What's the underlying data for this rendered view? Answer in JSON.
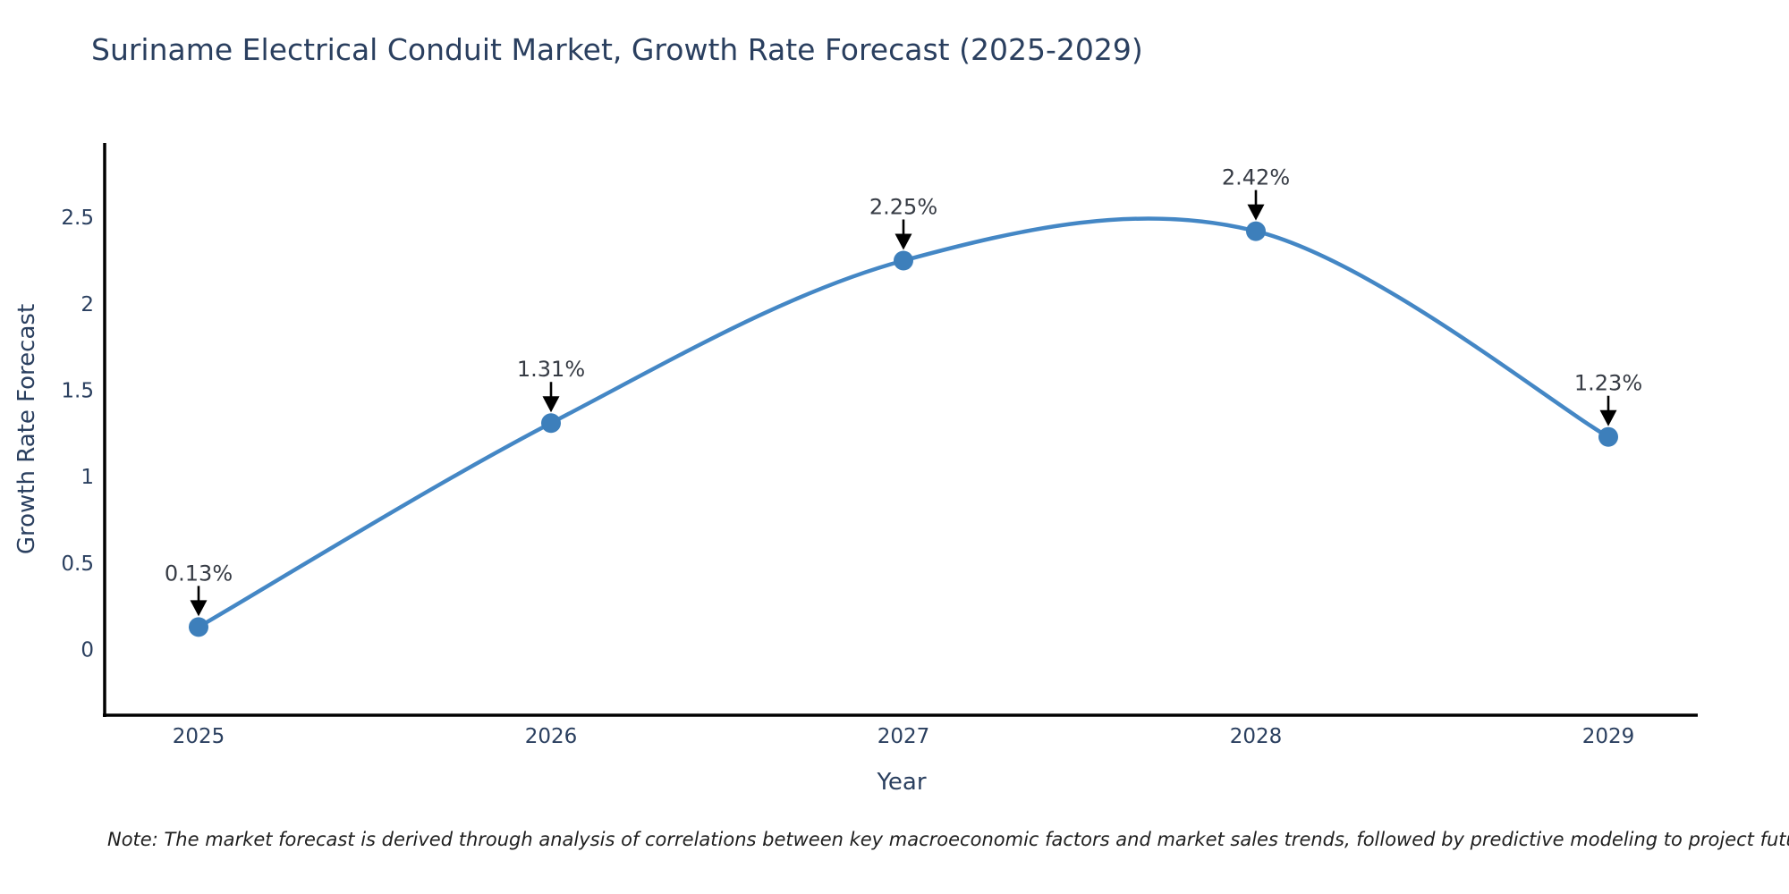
{
  "chart": {
    "title": "Suriname Electrical Conduit Market, Growth Rate Forecast (2025-2029)",
    "xlabel": "Year",
    "ylabel": "Growth Rate Forecast",
    "note": "Note: The market forecast is derived through analysis of correlations between key macroeconomic factors and market sales trends, followed by predictive modeling to project future sales"
  },
  "chart_data": {
    "type": "line",
    "title": "Suriname Electrical Conduit Market, Growth Rate Forecast (2025-2029)",
    "xlabel": "Year",
    "ylabel": "Growth Rate Forecast",
    "x": [
      2025,
      2026,
      2027,
      2028,
      2029
    ],
    "series": [
      {
        "name": "Growth Rate Forecast",
        "values": [
          0.13,
          1.31,
          2.25,
          2.42,
          1.23
        ]
      }
    ],
    "point_labels": [
      "0.13%",
      "1.31%",
      "2.25%",
      "2.42%",
      "1.23%"
    ],
    "yticks": [
      0,
      0.5,
      1,
      1.5,
      2,
      2.5
    ],
    "ylim": [
      -0.38,
      2.93
    ],
    "smooth": true,
    "grid": false,
    "legend": false,
    "line_color": "#4487c5",
    "marker_color": "#3d7fbb",
    "axis_color": "#000000",
    "text_color": "#2a3f5f",
    "annotation_text_color": "#363b44",
    "annotation_arrow_color": "#000000"
  }
}
